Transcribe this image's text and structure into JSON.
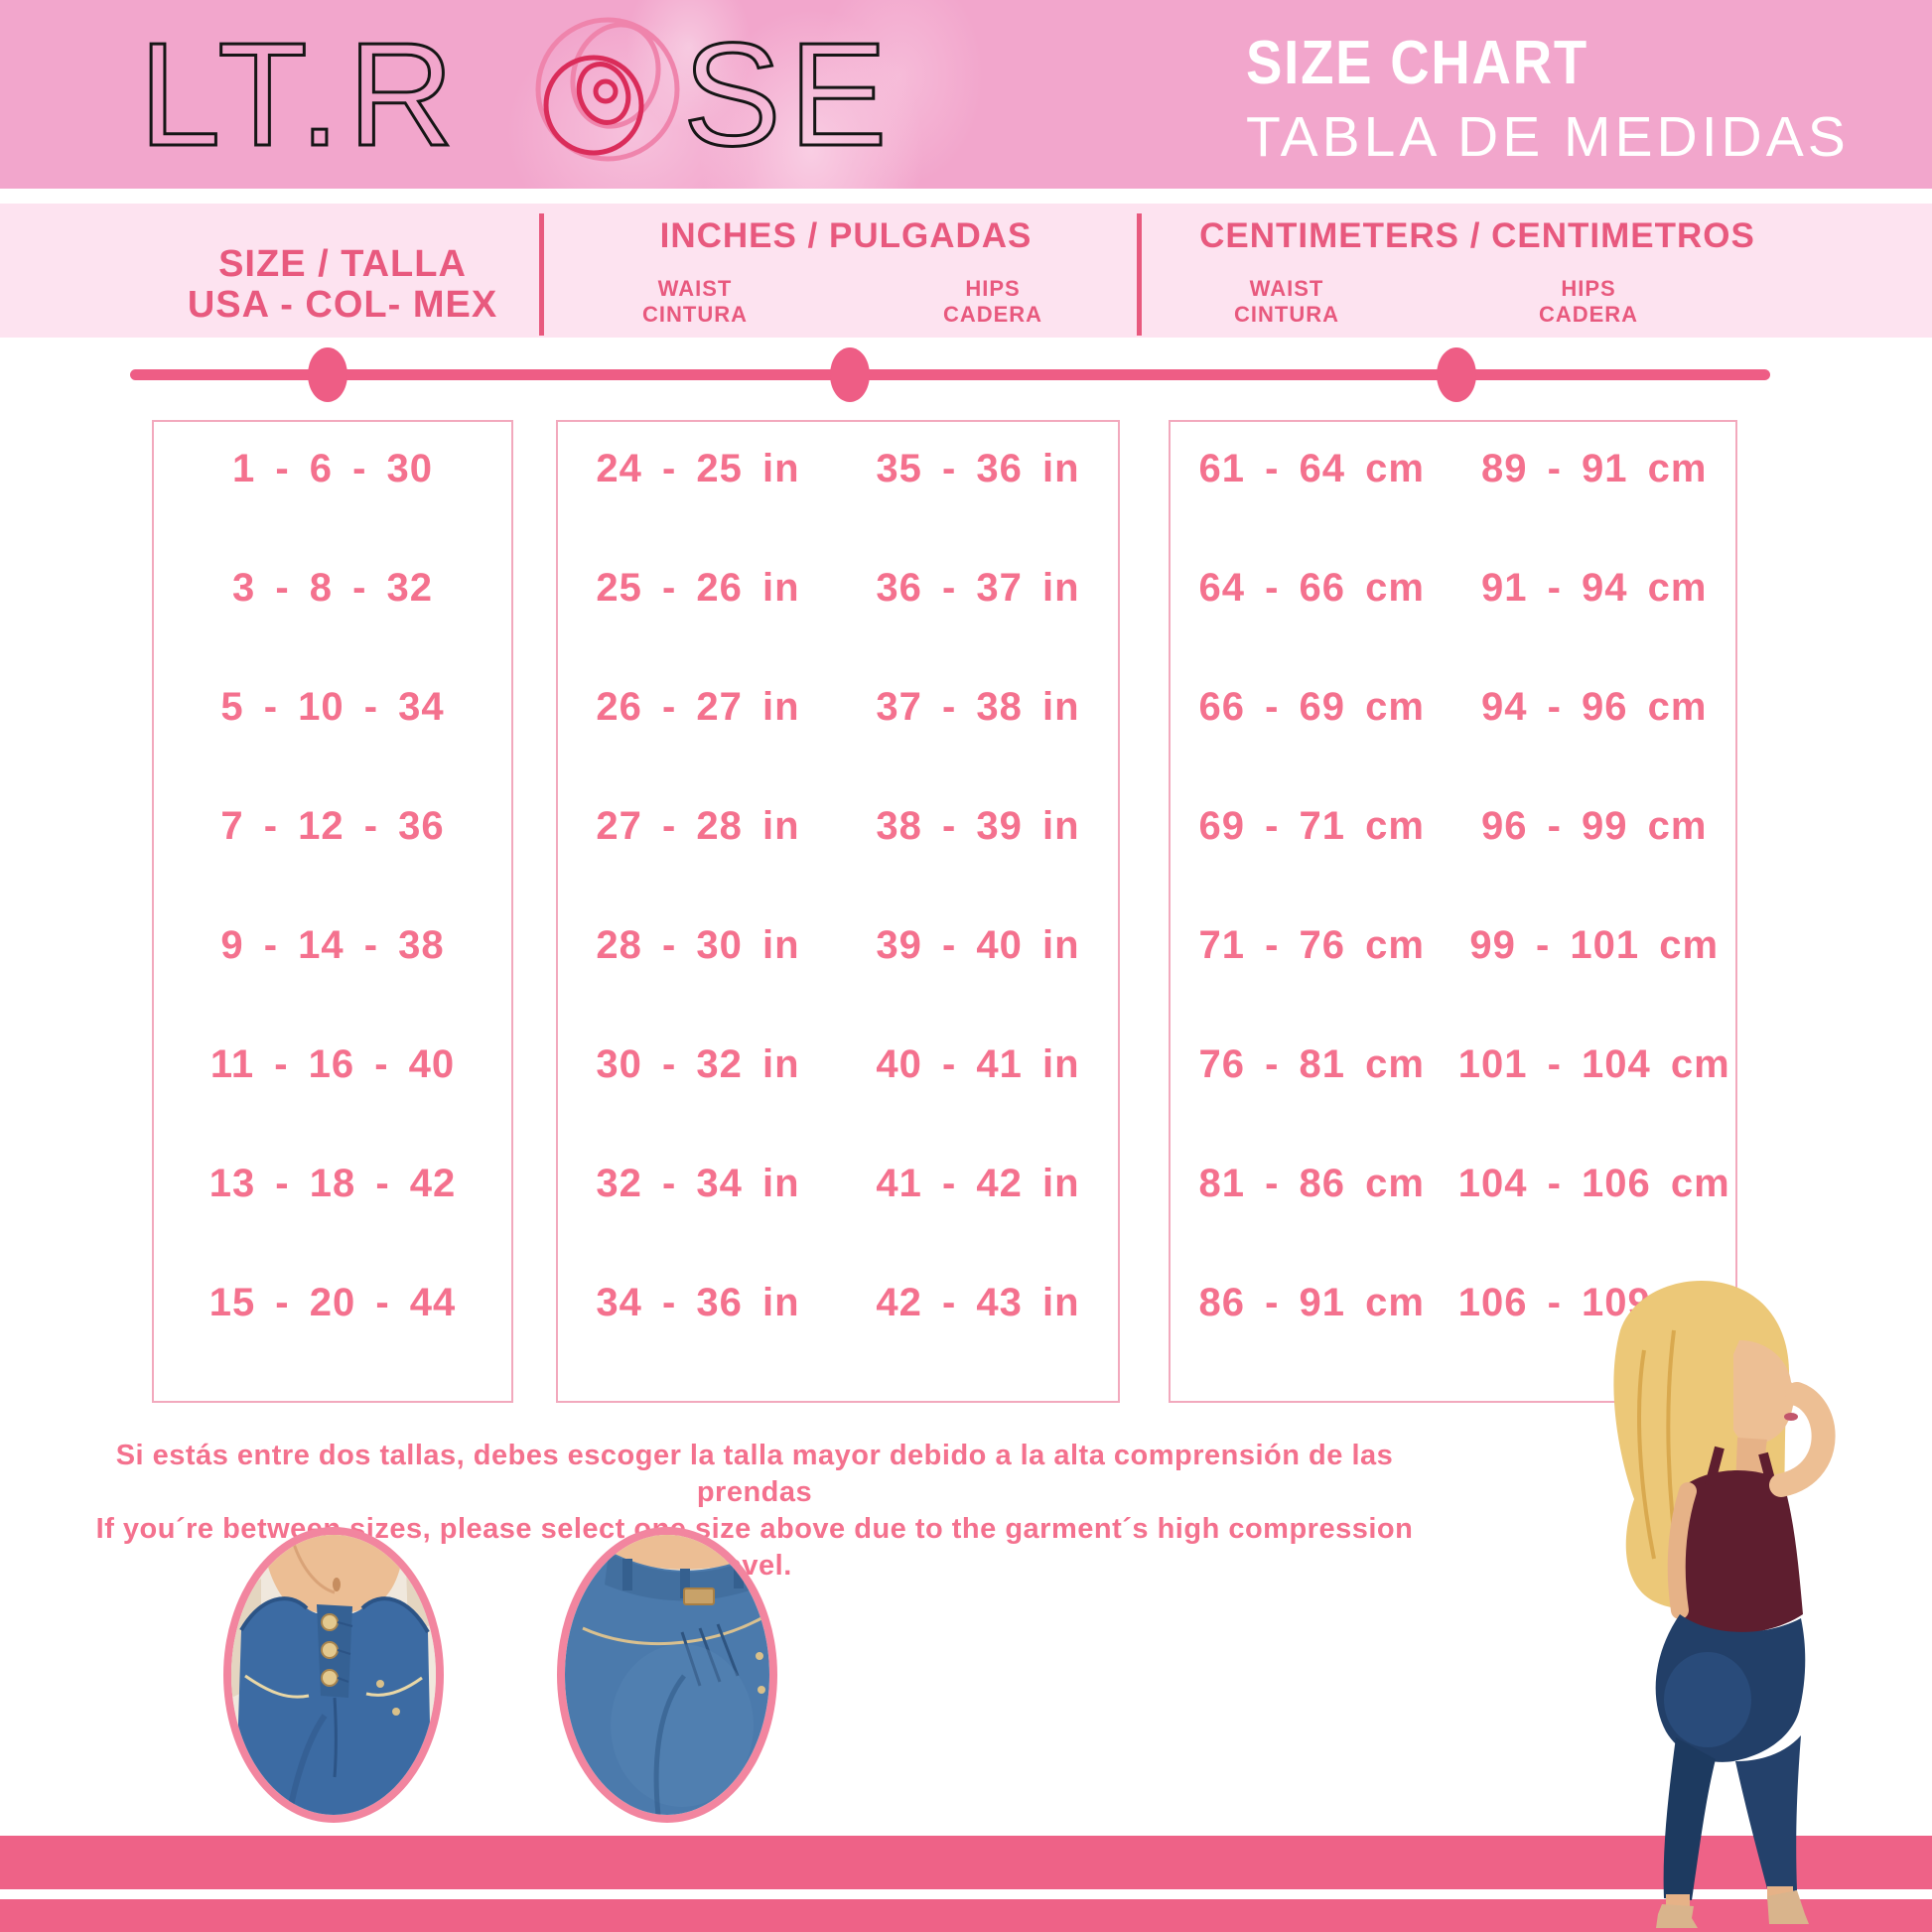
{
  "header": {
    "logo_part1": "LT.R",
    "logo_part2": "SE",
    "title": "SIZE CHART",
    "subtitle": "TABLA DE MEDIDAS"
  },
  "table_header": {
    "size": {
      "line1": "SIZE / TALLA",
      "line2": "USA - COL- MEX"
    },
    "inches": {
      "title": "INCHES / PULGADAS",
      "waist": {
        "line1": "WAIST",
        "line2": "CINTURA"
      },
      "hips": {
        "line1": "HIPS",
        "line2": "CADERA"
      }
    },
    "centimeters": {
      "title": "CENTIMETERS / CENTIMETROS",
      "waist": {
        "line1": "WAIST",
        "line2": "CINTURA"
      },
      "hips": {
        "line1": "HIPS",
        "line2": "CADERA"
      }
    }
  },
  "chart_data": {
    "type": "table",
    "title": "SIZE CHART / TABLA DE MEDIDAS",
    "columns": [
      "SIZE / TALLA (USA - COL - MEX)",
      "INCHES WAIST / CINTURA",
      "INCHES HIPS / CADERA",
      "CENTIMETERS WAIST / CINTURA",
      "CENTIMETERS HIPS / CADERA"
    ],
    "rows": [
      {
        "size": "1 - 6 - 30",
        "waist_in": "24 - 25 in",
        "hips_in": "35 - 36 in",
        "waist_cm": "61 - 64 cm",
        "hips_cm": "89 - 91 cm"
      },
      {
        "size": "3 - 8 - 32",
        "waist_in": "25 - 26 in",
        "hips_in": "36 - 37 in",
        "waist_cm": "64 - 66 cm",
        "hips_cm": "91 - 94 cm"
      },
      {
        "size": "5 - 10 - 34",
        "waist_in": "26 - 27 in",
        "hips_in": "37 - 38 in",
        "waist_cm": "66 - 69 cm",
        "hips_cm": "94 - 96 cm"
      },
      {
        "size": "7 - 12 - 36",
        "waist_in": "27 - 28 in",
        "hips_in": "38 - 39 in",
        "waist_cm": "69 - 71 cm",
        "hips_cm": "96 - 99 cm"
      },
      {
        "size": "9 - 14 - 38",
        "waist_in": "28 - 30 in",
        "hips_in": "39 - 40 in",
        "waist_cm": "71 - 76 cm",
        "hips_cm": "99 - 101 cm"
      },
      {
        "size": "11 - 16 - 40",
        "waist_in": "30 - 32 in",
        "hips_in": "40 - 41 in",
        "waist_cm": "76 - 81 cm",
        "hips_cm": "101 - 104 cm"
      },
      {
        "size": "13 - 18 - 42",
        "waist_in": "32 - 34 in",
        "hips_in": "41 - 42 in",
        "waist_cm": "81 - 86 cm",
        "hips_cm": "104 - 106 cm"
      },
      {
        "size": "15 - 20 - 44",
        "waist_in": "34 - 36 in",
        "hips_in": "42 - 43 in",
        "waist_cm": "86 - 91 cm",
        "hips_cm": "106 - 109 cm"
      }
    ]
  },
  "note": {
    "line1_es": "Si estás entre dos tallas, debes escoger la talla mayor debido a la alta comprensión de las prendas",
    "line2_en": "If you´re between sizes, please select one size above due to the garment´s high compression level."
  },
  "colors": {
    "header-bg": "#f2a6cc",
    "band-bg": "#fde3f0",
    "accent": "#e8597e",
    "accent-light": "#f4718e",
    "line-pink": "#ee5d85",
    "footer-pink": "#ee6287",
    "box-border": "#f2a9bd",
    "logo-ink": "#161616",
    "rose-red": "#da2c5a",
    "rose-pink": "#ef84ac",
    "title-white": "#ffffff"
  }
}
